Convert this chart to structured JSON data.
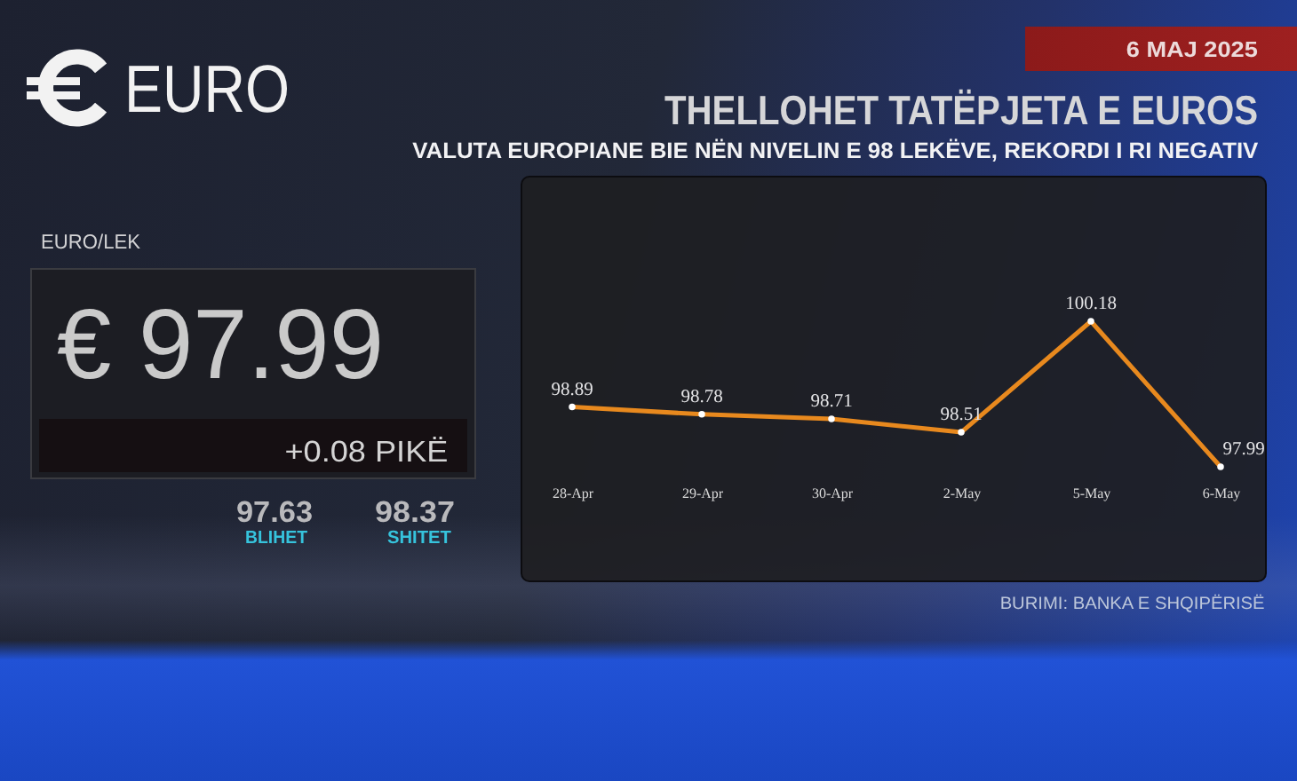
{
  "chart_data": {
    "type": "line",
    "title": "THELLOHET TATËPJETA E EUROS",
    "subtitle": "VALUTA EUROPIANE BIE NËN NIVELIN E 98 LEKËVE, REKORDI I RI NEGATIV",
    "categories": [
      "28-Apr",
      "29-Apr",
      "30-Apr",
      "2-May",
      "5-May",
      "6-May"
    ],
    "series": [
      {
        "color": "#e8891e",
        "values": [
          98.89,
          98.78,
          98.71,
          98.51,
          100.18,
          97.99
        ]
      }
    ],
    "data_labels": true,
    "marker": "circle",
    "line_style": "solid",
    "tick_labels": "x",
    "annotations": [
      "6 MAJ 2025",
      "EURO",
      "EURO/LEK",
      "€ 97.99",
      "+0.08 PIKË",
      "97.63",
      "BLIHET",
      "98.37",
      "SHITET",
      "BURIMI: BANKA E SHQIPËRISË"
    ]
  }
}
